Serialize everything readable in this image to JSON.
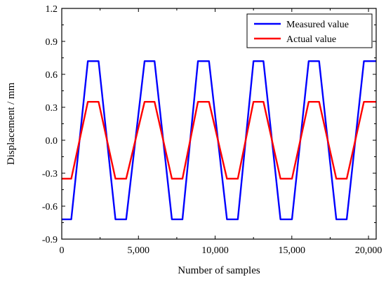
{
  "chart_data": {
    "type": "line",
    "title": "",
    "xlabel": "Number of samples",
    "ylabel": "Displacement / mm",
    "xlim": [
      0,
      20500
    ],
    "ylim": [
      -0.9,
      1.2
    ],
    "xticks": [
      0,
      5000,
      10000,
      15000,
      20000
    ],
    "xtick_labels": [
      "0",
      "5,000",
      "10,000",
      "15,000",
      "20,000"
    ],
    "yticks": [
      -0.9,
      -0.6,
      -0.3,
      0.0,
      0.3,
      0.6,
      0.9,
      1.2
    ],
    "ytick_labels": [
      "-0.9",
      "-0.6",
      "-0.3",
      "0.0",
      "0.3",
      "0.6",
      "0.9",
      "1.2"
    ],
    "grid": false,
    "legend_position": "top-right",
    "series": [
      {
        "name": "Measured value",
        "color": "#0000ff",
        "x": [
          0,
          620,
          1700,
          2400,
          3500,
          4200,
          5400,
          6050,
          7180,
          7870,
          8880,
          9600,
          10770,
          11480,
          12500,
          13150,
          14260,
          15010,
          16100,
          16780,
          17900,
          18580,
          19700,
          20400,
          20500
        ],
        "y": [
          -0.72,
          -0.72,
          0.72,
          0.72,
          -0.72,
          -0.72,
          0.72,
          0.72,
          -0.72,
          -0.72,
          0.72,
          0.72,
          -0.72,
          -0.72,
          0.72,
          0.72,
          -0.72,
          -0.72,
          0.72,
          0.72,
          -0.72,
          -0.72,
          0.72,
          0.72,
          0.72
        ]
      },
      {
        "name": "Actual value",
        "color": "#ff0000",
        "x": [
          0,
          620,
          1700,
          2400,
          3500,
          4200,
          5400,
          6050,
          7180,
          7870,
          8880,
          9600,
          10770,
          11480,
          12500,
          13150,
          14260,
          15010,
          16100,
          16780,
          17900,
          18580,
          19700,
          20400,
          20500
        ],
        "y": [
          -0.35,
          -0.35,
          0.35,
          0.35,
          -0.35,
          -0.35,
          0.35,
          0.35,
          -0.35,
          -0.35,
          0.35,
          0.35,
          -0.35,
          -0.35,
          0.35,
          0.35,
          -0.35,
          -0.35,
          0.35,
          0.35,
          -0.35,
          -0.35,
          0.35,
          0.35,
          0.35
        ]
      }
    ]
  }
}
